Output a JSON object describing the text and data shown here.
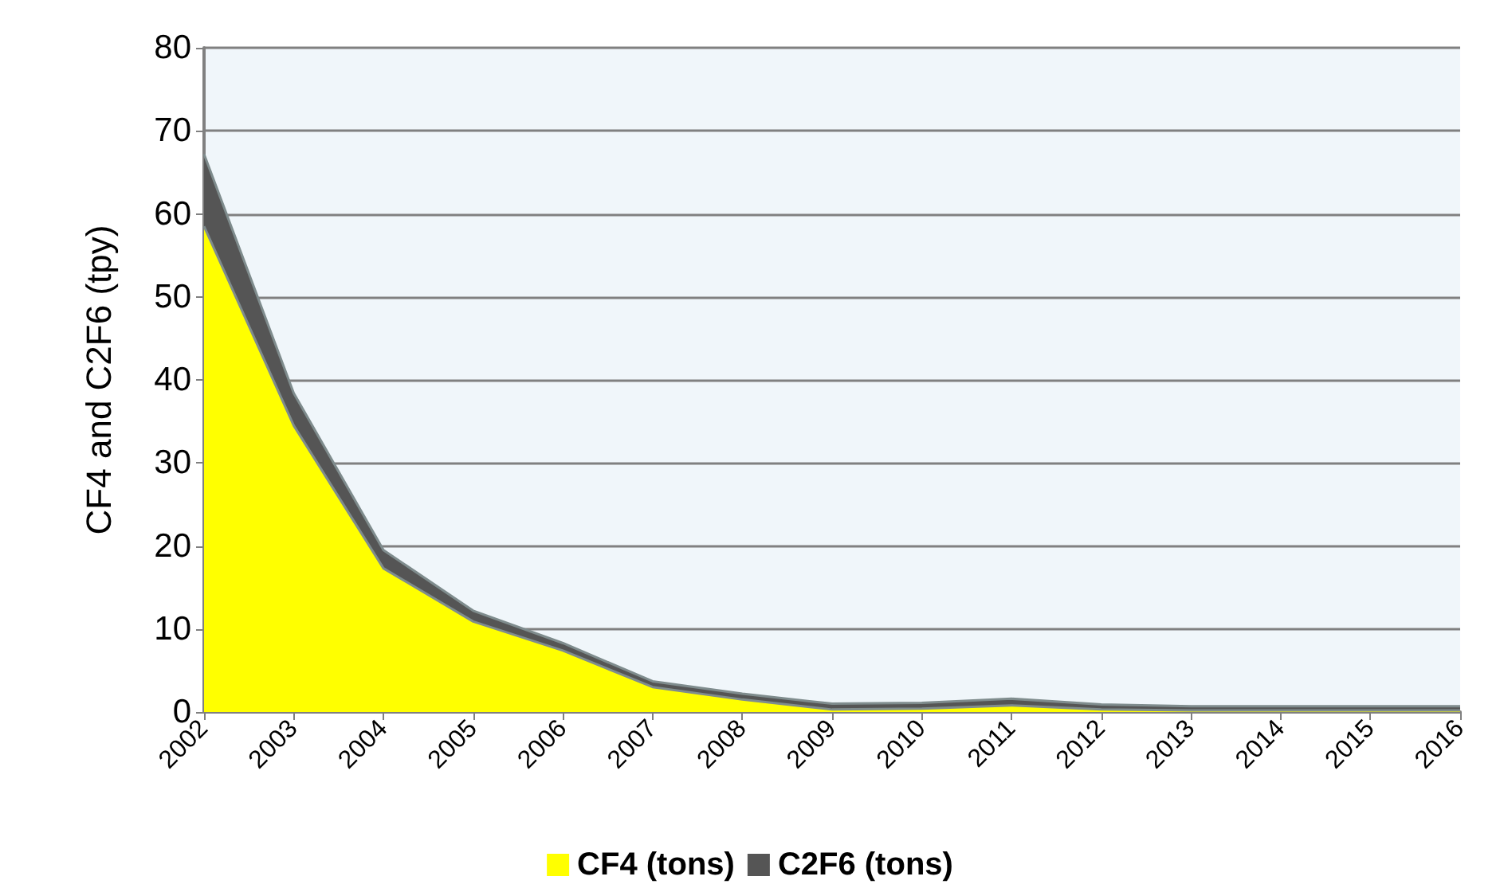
{
  "chart_data": {
    "type": "area",
    "stacked": true,
    "ylabel": "CF4 and C2F6 (tpy)",
    "categories": [
      "2002",
      "2003",
      "2004",
      "2005",
      "2006",
      "2007",
      "2008",
      "2009",
      "2010",
      "2011",
      "2012",
      "2013",
      "2014",
      "2015",
      "2016"
    ],
    "series": [
      {
        "name": "CF4 (tons)",
        "color": "#ffff00",
        "values": [
          58.5,
          34.5,
          17.3,
          10.9,
          7.4,
          3.0,
          1.5,
          0.3,
          0.4,
          0.8,
          0.3,
          0.2,
          0.2,
          0.2,
          0.2
        ]
      },
      {
        "name": "C2F6 (tons)",
        "color": "#555555",
        "values": [
          8.7,
          3.9,
          2.2,
          1.3,
          0.9,
          0.7,
          0.7,
          0.7,
          0.7,
          0.8,
          0.6,
          0.5,
          0.5,
          0.5,
          0.5
        ]
      }
    ],
    "ylim": [
      0,
      80
    ],
    "yticks": [
      0,
      10,
      20,
      30,
      40,
      50,
      60,
      70,
      80
    ],
    "grid": "y",
    "legend": "bottom",
    "marker": "none"
  }
}
